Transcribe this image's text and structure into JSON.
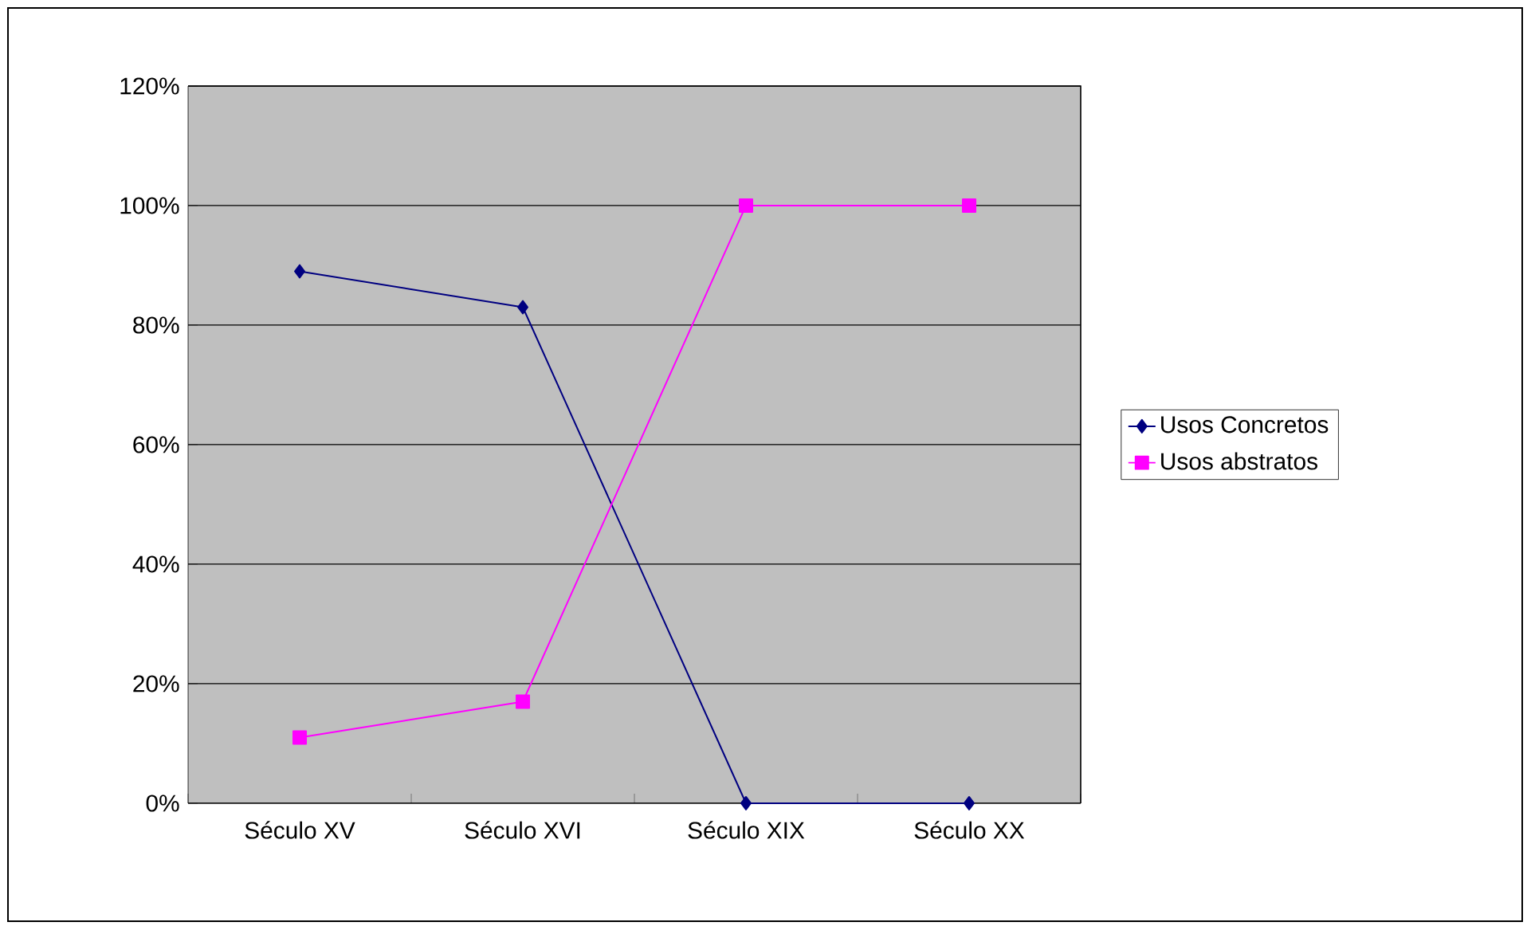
{
  "chart_data": {
    "type": "line",
    "categories": [
      "Século XV",
      "Século XVI",
      "Século XIX",
      "Século XX"
    ],
    "series": [
      {
        "name": "Usos Concretos",
        "color": "#000080",
        "marker": "diamond",
        "values": [
          89,
          83,
          0,
          0
        ]
      },
      {
        "name": "Usos abstratos",
        "color": "#ff00ff",
        "marker": "square",
        "values": [
          11,
          17,
          100,
          100
        ]
      }
    ],
    "ylim": [
      0,
      120
    ],
    "yticks": [
      {
        "value": 0,
        "label": "0%"
      },
      {
        "value": 20,
        "label": "20%"
      },
      {
        "value": 40,
        "label": "40%"
      },
      {
        "value": 60,
        "label": "60%"
      },
      {
        "value": 80,
        "label": "80%"
      },
      {
        "value": 100,
        "label": "100%"
      },
      {
        "value": 120,
        "label": "120%"
      }
    ],
    "grid": "y",
    "legend": "right",
    "line_style": "solid"
  }
}
